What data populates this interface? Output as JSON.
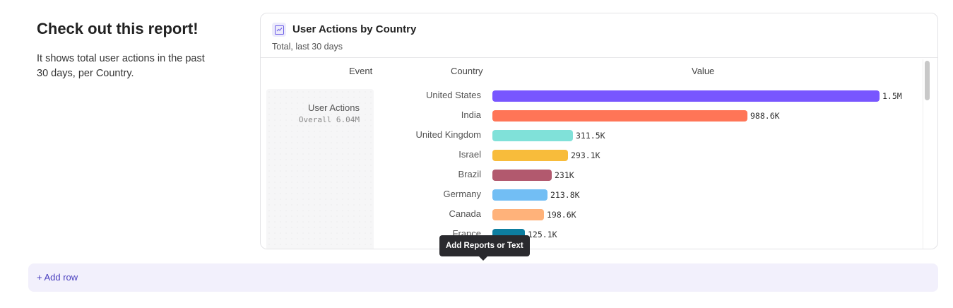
{
  "intro": {
    "title": "Check out this report!",
    "text": "It shows total user actions in the past 30 days, per Country."
  },
  "report": {
    "icon": "line-chart-icon",
    "title": "User Actions by Country",
    "subtitle": "Total, last 30 days",
    "columns": {
      "event": "Event",
      "country": "Country",
      "value": "Value"
    },
    "event": {
      "name": "User Actions",
      "overall": "Overall  6.04M"
    }
  },
  "chart_data": {
    "type": "bar",
    "orientation": "horizontal",
    "xlim": [
      0,
      1500000
    ],
    "categories": [
      "United States",
      "India",
      "United Kingdom",
      "Israel",
      "Brazil",
      "Germany",
      "Canada",
      "France"
    ],
    "values": [
      1500000,
      988600,
      311500,
      293100,
      231000,
      213800,
      198600,
      125100
    ],
    "labels": [
      "1.5M",
      "988.6K",
      "311.5K",
      "293.1K",
      "231K",
      "213.8K",
      "198.6K",
      "125.1K"
    ],
    "colors": [
      "#7856ff",
      "#ff7557",
      "#80e1d9",
      "#f8bc3b",
      "#b2596e",
      "#72bef4",
      "#ffb27a",
      "#0d7ea0"
    ]
  },
  "add_row": "+ Add row",
  "tooltip": "Add Reports or Text"
}
